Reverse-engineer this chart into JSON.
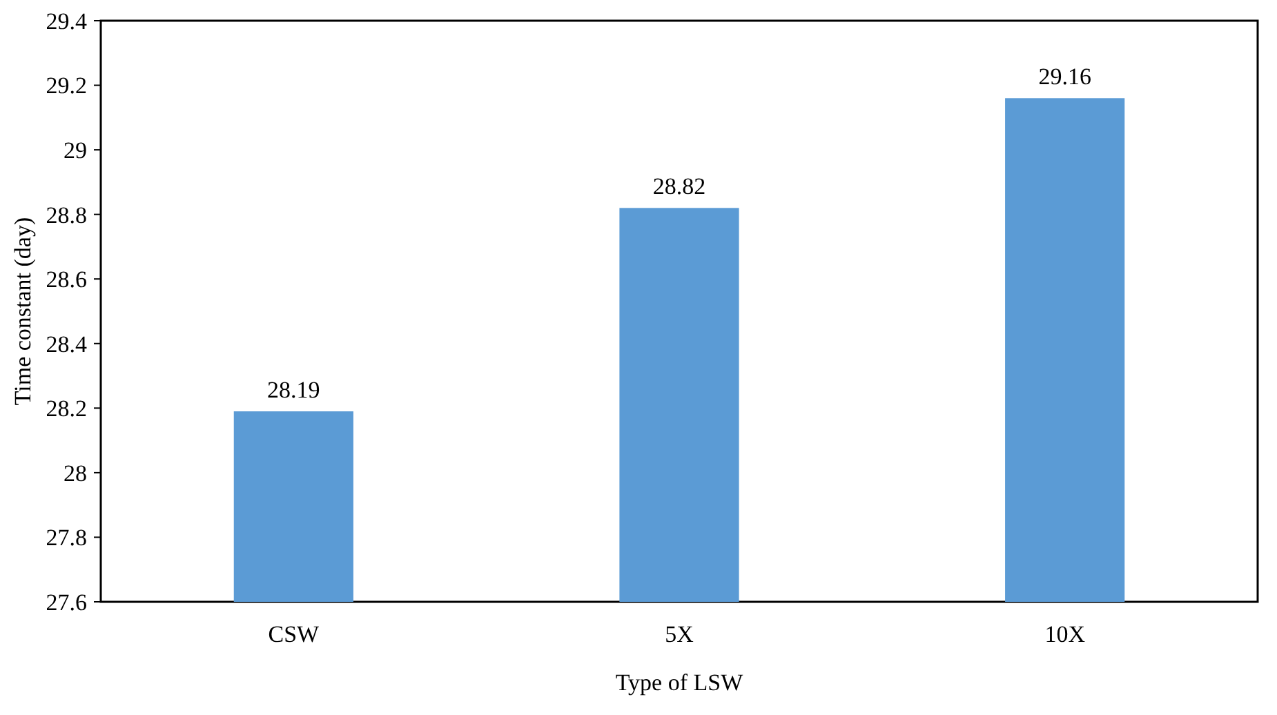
{
  "chart_data": {
    "type": "bar",
    "xlabel": "Type of LSW",
    "ylabel": "Time constant (day)",
    "categories": [
      "CSW",
      "5X",
      "10X"
    ],
    "values": [
      28.19,
      28.82,
      29.16
    ],
    "color": "#5b9bd5",
    "ylim": [
      27.6,
      29.4
    ],
    "yticks": [
      27.6,
      27.8,
      28,
      28.2,
      28.4,
      28.6,
      28.8,
      29,
      29.2,
      29.4
    ],
    "data_labels": true
  }
}
